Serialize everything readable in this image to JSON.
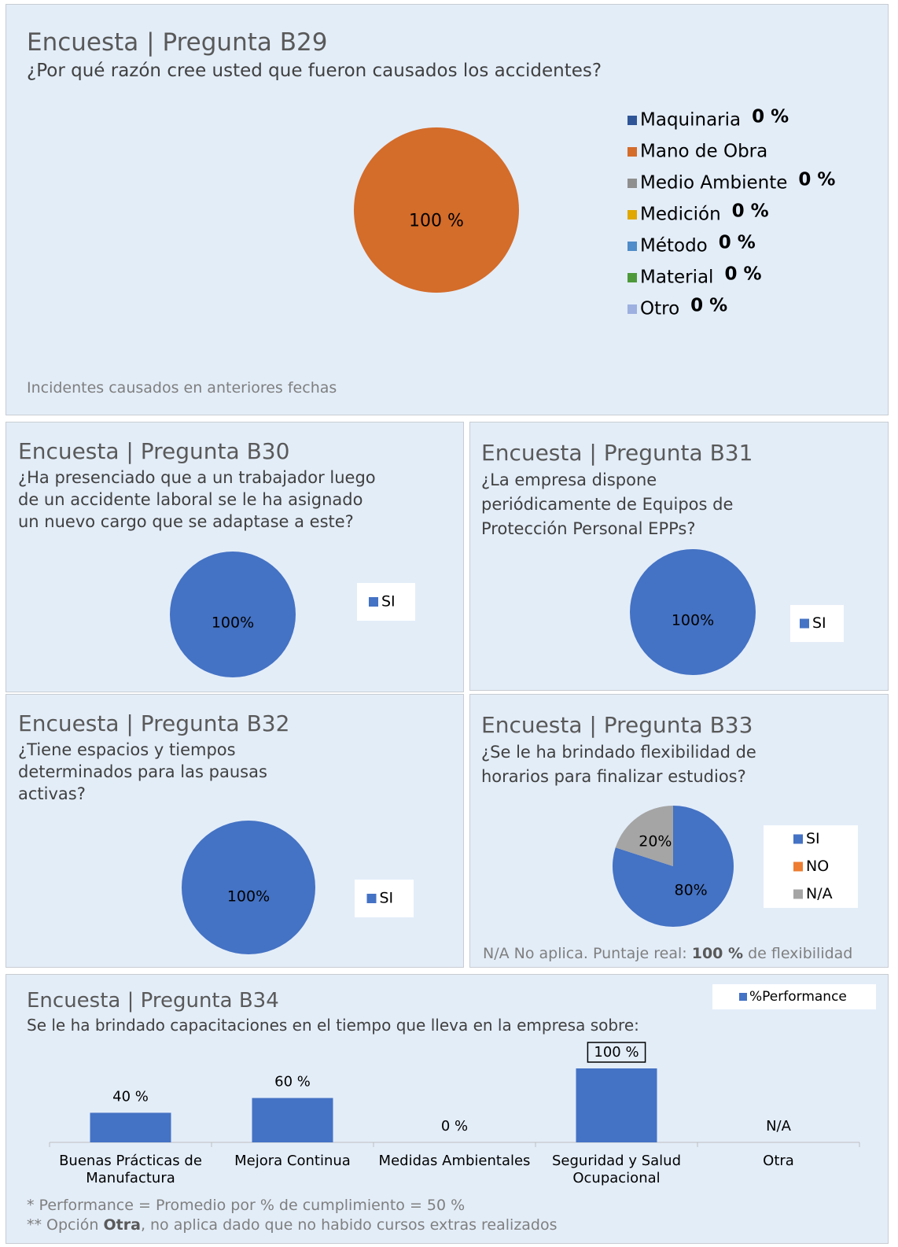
{
  "chart_data": [
    {
      "type": "pie",
      "title": "Encuesta | Pregunta B29",
      "subtitle": "¿Por qué razón cree usted que fueron causados los accidentes?",
      "categories": [
        "Maquinaria",
        "Mano de Obra",
        "Medio Ambiente",
        "Medición",
        "Método",
        "Material",
        "Otro"
      ],
      "values": [
        0,
        100,
        0,
        0,
        0,
        0,
        0
      ],
      "value_labels": [
        "0 %",
        "100 %",
        "0 %",
        "0 %",
        "0 %",
        "0 %",
        "0 %"
      ],
      "colors": [
        "#2f5597",
        "#d46c2a",
        "#8f8f8f",
        "#e0a800",
        "#4f8cc9",
        "#4e9a3a",
        "#9db0e0"
      ],
      "notes": [
        [
          "Incidentes causados en anteriores fechas"
        ]
      ]
    },
    {
      "type": "pie",
      "title": "Encuesta | Pregunta B30",
      "subtitle": "¿Ha presenciado que a un trabajador luego de un accidente laboral se le ha asignado un nuevo cargo que se adaptase a este?",
      "categories": [
        "SI"
      ],
      "values": [
        100
      ],
      "value_labels": [
        "100%"
      ],
      "colors": [
        "#4472c4"
      ]
    },
    {
      "type": "pie",
      "title": "Encuesta | Pregunta B31",
      "subtitle": "¿La empresa dispone periódicamente de Equipos de Protección Personal EPPs?",
      "categories": [
        "SI"
      ],
      "values": [
        100
      ],
      "value_labels": [
        "100%"
      ],
      "colors": [
        "#4472c4"
      ]
    },
    {
      "type": "pie",
      "title": "Encuesta | Pregunta B32",
      "subtitle": "¿Tiene espacios y tiempos determinados para las pausas activas?",
      "categories": [
        "SI"
      ],
      "values": [
        100
      ],
      "value_labels": [
        "100%"
      ],
      "colors": [
        "#4472c4"
      ]
    },
    {
      "type": "pie",
      "title": "Encuesta | Pregunta B33",
      "subtitle": "¿Se le ha brindado flexibilidad de horarios para finalizar estudios?",
      "categories": [
        "SI",
        "NO",
        "N/A"
      ],
      "values": [
        80,
        0,
        20
      ],
      "value_labels": [
        "80%",
        null,
        "20%"
      ],
      "colors": [
        "#4472c4",
        "#ed7d31",
        "#a5a5a5"
      ],
      "notes": [
        [
          "N/A No aplica. Puntaje real: ",
          "100 %",
          " de flexibilidad"
        ]
      ]
    },
    {
      "type": "bar",
      "title": "Encuesta | Pregunta B34",
      "subtitle": "Se le ha brindado capacitaciones en el tiempo que lleva en la empresa sobre:",
      "categories": [
        "Buenas Prácticas de Manufactura",
        "Mejora Continua",
        "Medidas Ambientales",
        "Seguridad y Salud Ocupacional",
        "Otra"
      ],
      "series": [
        {
          "name": "%Performance",
          "color": "#4472c4",
          "values": [
            40,
            60,
            0,
            100,
            null
          ]
        }
      ],
      "value_labels": [
        "40 %",
        "60 %",
        "0 %",
        "100 %",
        "N/A"
      ],
      "ylim": [
        0,
        100
      ],
      "notes": [
        [
          "* Performance = Promedio por % de cumplimiento = 50 %"
        ],
        [
          "** Opción ",
          "Otra",
          ", no aplica dado que no habido cursos extras realizados"
        ]
      ]
    }
  ]
}
